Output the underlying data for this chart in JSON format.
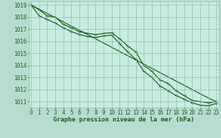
{
  "xlabel": "Graphe pression niveau de la mer (hPa)",
  "x": [
    0,
    1,
    2,
    3,
    4,
    5,
    6,
    7,
    8,
    9,
    10,
    11,
    12,
    13,
    14,
    15,
    16,
    17,
    18,
    19,
    20,
    21,
    22,
    23
  ],
  "line_straight": [
    1019.0,
    1018.65,
    1018.3,
    1017.95,
    1017.6,
    1017.25,
    1016.9,
    1016.55,
    1016.2,
    1015.85,
    1015.5,
    1015.15,
    1014.8,
    1014.45,
    1014.1,
    1013.75,
    1013.4,
    1013.05,
    1012.7,
    1012.35,
    1012.0,
    1011.65,
    1011.3,
    1011.0
  ],
  "line_upper": [
    1019.0,
    1018.6,
    1018.1,
    1018.0,
    1017.4,
    1017.1,
    1016.8,
    1016.65,
    1016.55,
    1016.65,
    1016.7,
    1016.2,
    1015.6,
    1015.1,
    1014.0,
    1013.5,
    1012.8,
    1012.5,
    1011.9,
    1011.5,
    1011.1,
    1011.0,
    1010.9,
    1011.0
  ],
  "line_lower": [
    1019.0,
    1018.1,
    1017.8,
    1017.5,
    1017.1,
    1016.8,
    1016.55,
    1016.4,
    1016.3,
    1016.45,
    1016.5,
    1015.8,
    1015.1,
    1014.5,
    1013.5,
    1013.0,
    1012.3,
    1011.9,
    1011.5,
    1011.2,
    1010.9,
    1010.7,
    1010.65,
    1010.85
  ],
  "ylim_min": 1010.5,
  "ylim_max": 1019.3,
  "yticks": [
    1011,
    1012,
    1013,
    1014,
    1015,
    1016,
    1017,
    1018,
    1019
  ],
  "xticks": [
    0,
    1,
    2,
    3,
    4,
    5,
    6,
    7,
    8,
    9,
    10,
    11,
    12,
    13,
    14,
    15,
    16,
    17,
    18,
    19,
    20,
    21,
    22,
    23
  ],
  "line_color": "#1a5c1a",
  "bg_color": "#b8ddd0",
  "plot_bg": "#c8ede0",
  "grid_color": "#90b8a8",
  "marker": "+",
  "marker_size": 3.5,
  "label_color": "#1a5c1a",
  "tick_color": "#1a5c1a",
  "tick_fontsize": 5.5,
  "xlabel_fontsize": 6.5
}
